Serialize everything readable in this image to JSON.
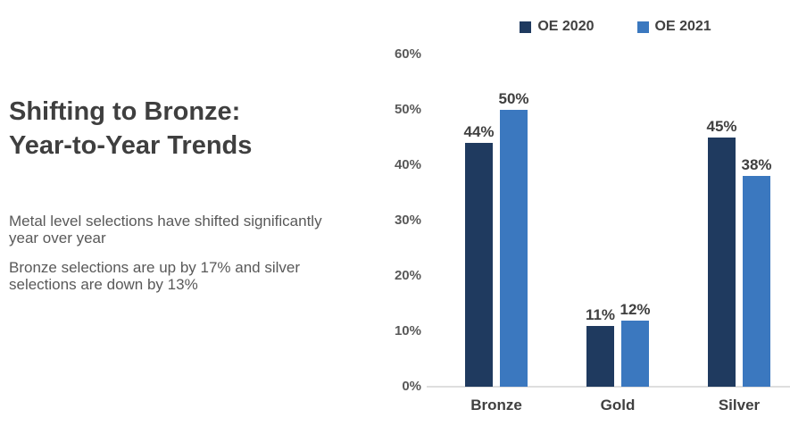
{
  "left_panel": {
    "title_line1": "Shifting to Bronze:",
    "title_line2": "Year-to-Year Trends",
    "paragraphs": [
      "Metal level selections have shifted significantly year over year",
      "Bronze selections are up by 17% and silver selections are down by 13%"
    ]
  },
  "chart_data": {
    "type": "bar",
    "title": "",
    "categories": [
      "Bronze",
      "Gold",
      "Silver"
    ],
    "series": [
      {
        "name": "OE 2020",
        "color": "#1f3a5f",
        "values": [
          44,
          11,
          45
        ]
      },
      {
        "name": "OE 2021",
        "color": "#3b78bf",
        "values": [
          50,
          12,
          38
        ]
      }
    ],
    "value_suffix": "%",
    "data_labels": true,
    "ylim": [
      0,
      60
    ],
    "ytick_step": 10,
    "ytick_labels": [
      "0%",
      "10%",
      "20%",
      "30%",
      "40%",
      "50%",
      "60%"
    ],
    "legend_position": "top",
    "grid": false,
    "axis_line_color": "#dedede",
    "bar_label_color": "#3f3f3f",
    "tick_label_color": "#595959"
  }
}
